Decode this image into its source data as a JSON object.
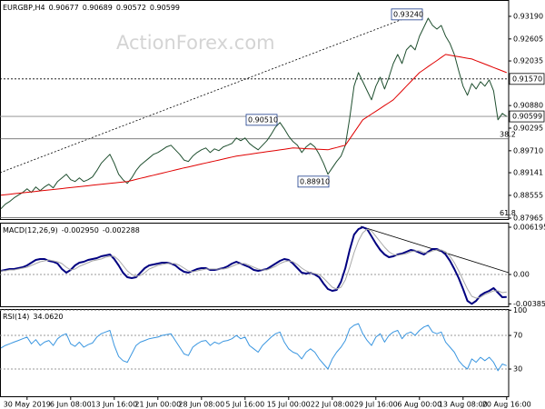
{
  "chart_data": [
    {
      "type": "line",
      "title": "EURGBP,H4",
      "ohlc": [
        0.90677,
        0.90689,
        0.90572,
        0.90599
      ],
      "watermark": "ActionForex.com",
      "ylim": [
        0.87918,
        0.93613
      ],
      "yticks": [
        {
          "value": 0.9319,
          "label": "0.93190"
        },
        {
          "value": 0.92605,
          "label": "0.92605"
        },
        {
          "value": 0.92035,
          "label": "0.92035"
        },
        {
          "value": 0.9088,
          "label": "0.90880"
        },
        {
          "value": 0.90295,
          "label": "0.90295"
        },
        {
          "value": 0.8971,
          "label": "0.89710"
        },
        {
          "value": 0.89141,
          "label": "0.89141"
        },
        {
          "value": 0.88555,
          "label": "0.88555"
        },
        {
          "value": 0.87965,
          "label": "0.87965"
        }
      ],
      "hlines": [
        {
          "value": 0.9157,
          "label": "0.91570",
          "style": "dotted"
        },
        {
          "value": 0.90599,
          "label": "0.90599",
          "style": "solid"
        }
      ],
      "fib_levels": [
        {
          "value": 0.90018,
          "label": "38.2"
        },
        {
          "value": 0.87976,
          "label": "61.8"
        }
      ],
      "annotations": [
        {
          "value": 0.9324,
          "label": "0.93240"
        },
        {
          "value": 0.9051,
          "label": "0.90510"
        },
        {
          "value": 0.8891,
          "label": "0.88910"
        }
      ],
      "series": [
        {
          "color": "#1f4f2f",
          "width": 1,
          "values": [
            0.88208,
            0.88326,
            0.88396,
            0.8849,
            0.88561,
            0.88631,
            0.88725,
            0.88631,
            0.88772,
            0.88678,
            0.88772,
            0.88843,
            0.88749,
            0.88913,
            0.89007,
            0.89101,
            0.8896,
            0.88913,
            0.89007,
            0.88913,
            0.8896,
            0.8903,
            0.89195,
            0.89383,
            0.89501,
            0.89618,
            0.89383,
            0.89101,
            0.8896,
            0.88866,
            0.89007,
            0.89195,
            0.89336,
            0.8943,
            0.89524,
            0.89618,
            0.89665,
            0.89735,
            0.8981,
            0.89853,
            0.89735,
            0.89618,
            0.8947,
            0.8943,
            0.89571,
            0.89665,
            0.89735,
            0.89782,
            0.89665,
            0.89759,
            0.89712,
            0.8981,
            0.89853,
            0.899,
            0.90041,
            0.8997,
            0.90041,
            0.899,
            0.8981,
            0.89735,
            0.89853,
            0.8997,
            0.90135,
            0.90323,
            0.9044,
            0.90276,
            0.90088,
            0.89947,
            0.89853,
            0.89665,
            0.8981,
            0.899,
            0.8981,
            0.89618,
            0.89383,
            0.89101,
            0.89266,
            0.8943,
            0.89571,
            0.89853,
            0.90558,
            0.91381,
            0.91733,
            0.91498,
            0.91263,
            0.91028,
            0.91381,
            0.91616,
            0.9131,
            0.91616,
            0.91968,
            0.92203,
            0.91968,
            0.9232,
            0.92438,
            0.9232,
            0.92673,
            0.92908,
            0.93143,
            0.92955,
            0.92861,
            0.92955,
            0.92673,
            0.92485,
            0.92203,
            0.9178,
            0.91381,
            0.91146,
            0.91451,
            0.9131,
            0.91498,
            0.91381,
            0.91545,
            0.91263,
            0.90511,
            0.90676,
            0.90599
          ]
        },
        {
          "color": "#e00000",
          "width": 1,
          "values": [
            0.88561,
            0.88573,
            0.88585,
            0.88597,
            0.8861,
            0.88622,
            0.88634,
            0.88646,
            0.88658,
            0.8867,
            0.88682,
            0.88694,
            0.88707,
            0.88719,
            0.88731,
            0.88743,
            0.88755,
            0.88767,
            0.88779,
            0.88791,
            0.88804,
            0.88816,
            0.88828,
            0.8884,
            0.88852,
            0.88864,
            0.88876,
            0.88888,
            0.88901,
            0.88913,
            0.8894,
            0.88967,
            0.88995,
            0.89022,
            0.89049,
            0.89076,
            0.89103,
            0.8913,
            0.89158,
            0.89185,
            0.89212,
            0.89239,
            0.89266,
            0.89291,
            0.89317,
            0.89342,
            0.89368,
            0.89393,
            0.89418,
            0.89444,
            0.89469,
            0.89495,
            0.8952,
            0.89546,
            0.89571,
            0.89587,
            0.89604,
            0.8962,
            0.89636,
            0.89652,
            0.89669,
            0.89685,
            0.89701,
            0.89717,
            0.89733,
            0.8975,
            0.89766,
            0.89782,
            0.89776,
            0.8977,
            0.89764,
            0.89758,
            0.89753,
            0.89747,
            0.89741,
            0.89735,
            0.89765,
            0.89794,
            0.89824,
            0.89853,
            0.90018,
            0.90182,
            0.90347,
            0.90511,
            0.90585,
            0.90659,
            0.90733,
            0.90806,
            0.9088,
            0.90954,
            0.91028,
            0.91146,
            0.91263,
            0.91381,
            0.91498,
            0.91616,
            0.91733,
            0.91811,
            0.9189,
            0.91968,
            0.92046,
            0.92125,
            0.92203,
            0.92183,
            0.92164,
            0.92144,
            0.92125,
            0.92105,
            0.92086,
            0.92042,
            0.91998,
            0.91953,
            0.91909,
            0.91865,
            0.91821,
            0.91777,
            0.91733
          ]
        }
      ]
    },
    {
      "type": "line",
      "title": "MACD(12,26,9)",
      "readout": [
        {
          "value": -0.00295,
          "label": "-0.002950"
        },
        -0.002288
      ],
      "ylim": [
        -0.004289,
        0.006791
      ],
      "zero_line": true,
      "yticks": [
        0.006195,
        {
          "value": 0,
          "label": "0.00"
        },
        -0.003851
      ],
      "series": [
        {
          "color": "#000080",
          "width": 2,
          "values": [
            0.000476,
            0.000595,
            0.000714,
            0.000714,
            0.000833,
            0.000952,
            0.00119,
            0.001547,
            0.001904,
            0.002023,
            0.002023,
            0.001785,
            0.001666,
            0.001428,
            0.000714,
            0.000238,
            0.000595,
            0.00119,
            0.001547,
            0.001666,
            0.001904,
            0.002023,
            0.002142,
            0.00238,
            0.002499,
            0.002618,
            0.002023,
            0.00119,
            0.000238,
            -0.000357,
            -0.000476,
            -0.000357,
            0.000238,
            0.000833,
            0.00119,
            0.001309,
            0.001428,
            0.001547,
            0.001547,
            0.001428,
            0.00119,
            0.000714,
            0.000357,
            0.000238,
            0.000476,
            0.000714,
            0.000833,
            0.000833,
            0.000595,
            0.000595,
            0.000714,
            0.000833,
            0.001071,
            0.001428,
            0.001666,
            0.001428,
            0.00119,
            0.000952,
            0.000595,
            0.000476,
            0.000595,
            0.000714,
            0.001071,
            0.001428,
            0.001785,
            0.002023,
            0.001904,
            0.001428,
            0.000833,
            0.000238,
            0.000119,
            0.000238,
            0,
            -0.000357,
            -0.00119,
            -0.001904,
            -0.002142,
            -0.002023,
            -0.000952,
            0.000833,
            0.003213,
            0.005236,
            0.00595,
            0.006195,
            0.00595,
            0.004998,
            0.004046,
            0.003213,
            0.002618,
            0.002261,
            0.00238,
            0.002618,
            0.002737,
            0.002975,
            0.003213,
            0.003094,
            0.002856,
            0.002618,
            0.002975,
            0.003332,
            0.003332,
            0.003094,
            0.002618,
            0.001785,
            0.000714,
            -0.000476,
            -0.001904,
            -0.003451,
            -0.003851,
            -0.003451,
            -0.002737,
            -0.00238,
            -0.002142,
            -0.001785,
            -0.00238,
            -0.002975,
            -0.00295
          ]
        },
        {
          "color": "#a8a8a8",
          "width": 1,
          "values": [
            0.000476,
            0.000476,
            0.000595,
            0.000595,
            0.000714,
            0.000833,
            0.000952,
            0.00119,
            0.001428,
            0.001666,
            0.001785,
            0.001904,
            0.001785,
            0.001666,
            0.001428,
            0.000952,
            0.000595,
            0.000714,
            0.001071,
            0.001309,
            0.001547,
            0.001785,
            0.001904,
            0.002023,
            0.002261,
            0.00238,
            0.00238,
            0.001904,
            0.00119,
            0.000476,
            0,
            -0.000238,
            -0.000119,
            0.000238,
            0.000714,
            0.000952,
            0.00119,
            0.001309,
            0.001428,
            0.001428,
            0.001428,
            0.00119,
            0.000833,
            0.000476,
            0.000357,
            0.000476,
            0.000595,
            0.000714,
            0.000714,
            0.000714,
            0.000714,
            0.000714,
            0.000833,
            0.001071,
            0.001309,
            0.001428,
            0.001428,
            0.00119,
            0.000952,
            0.000714,
            0.000595,
            0.000595,
            0.000833,
            0.001071,
            0.001428,
            0.001666,
            0.001785,
            0.001666,
            0.001309,
            0.000833,
            0.000476,
            0.000238,
            0.000119,
            0,
            -0.000476,
            -0.001071,
            -0.001666,
            -0.001904,
            -0.001666,
            -0.000714,
            0.000952,
            0.002856,
            0.004403,
            0.005474,
            0.00595,
            0.005712,
            0.004998,
            0.004284,
            0.00357,
            0.002975,
            0.002618,
            0.002499,
            0.002618,
            0.002737,
            0.002975,
            0.003094,
            0.003094,
            0.002856,
            0.002856,
            0.003094,
            0.003213,
            0.003213,
            0.002975,
            0.00238,
            0.001547,
            0.000476,
            -0.000714,
            -0.001904,
            -0.002856,
            -0.003094,
            -0.002975,
            -0.002618,
            -0.00238,
            -0.002142,
            -0.002142,
            -0.00238,
            -0.002288
          ]
        }
      ]
    },
    {
      "type": "line",
      "title": "RSI(14)",
      "readout": [
        {
          "value": 34.062,
          "label": "34.0620"
        }
      ],
      "ylim": [
        -3.5,
        101.4
      ],
      "grid": true,
      "yticks": [
        100,
        70,
        30
      ],
      "categories": [
        null,
        null,
        null,
        null,
        null,
        null,
        "30 May 2019",
        null,
        null,
        null,
        null,
        null,
        null,
        null,
        null,
        null,
        "6 Jun 08:00",
        null,
        null,
        null,
        null,
        null,
        null,
        null,
        null,
        null,
        "13 Jun 16:00",
        null,
        null,
        null,
        null,
        null,
        null,
        null,
        null,
        null,
        "21 Jun 00:00",
        null,
        null,
        null,
        null,
        null,
        null,
        null,
        null,
        null,
        "28 Jun 08:00",
        null,
        null,
        null,
        null,
        null,
        null,
        null,
        null,
        null,
        "5 Jul 16:00",
        null,
        null,
        null,
        null,
        null,
        null,
        null,
        null,
        null,
        "15 Jul 00:00",
        null,
        null,
        null,
        null,
        null,
        null,
        null,
        null,
        null,
        "22 Jul 08:00",
        null,
        null,
        null,
        null,
        null,
        null,
        null,
        null,
        null,
        "29 Jul 16:00",
        null,
        null,
        null,
        null,
        null,
        null,
        null,
        null,
        null,
        "6 Aug 00:00",
        null,
        null,
        null,
        null,
        null,
        null,
        null,
        null,
        null,
        "13 Aug 08:00",
        null,
        null,
        null,
        null,
        null,
        null,
        null,
        null,
        null,
        "20 Aug 16:00"
      ],
      "series": [
        {
          "color": "#3a96e0",
          "width": 1,
          "values": [
            55,
            58,
            60,
            62,
            64,
            66,
            68,
            60,
            65,
            58,
            62,
            64,
            58,
            66,
            70,
            72,
            60,
            57,
            62,
            56,
            59,
            61,
            68,
            72,
            74,
            76,
            58,
            45,
            40,
            38,
            48,
            58,
            62,
            64,
            66,
            67,
            68,
            70,
            71,
            72,
            64,
            56,
            48,
            46,
            56,
            60,
            63,
            64,
            58,
            62,
            60,
            63,
            64,
            66,
            70,
            66,
            68,
            58,
            54,
            50,
            58,
            63,
            68,
            72,
            74,
            62,
            54,
            50,
            48,
            42,
            50,
            54,
            50,
            42,
            36,
            30,
            42,
            50,
            56,
            64,
            78,
            82,
            84,
            72,
            64,
            58,
            68,
            72,
            62,
            70,
            74,
            76,
            66,
            72,
            74,
            70,
            76,
            80,
            82,
            74,
            72,
            74,
            62,
            56,
            50,
            40,
            34,
            30,
            42,
            38,
            44,
            40,
            44,
            38,
            28,
            36,
            34.062
          ]
        }
      ]
    }
  ]
}
